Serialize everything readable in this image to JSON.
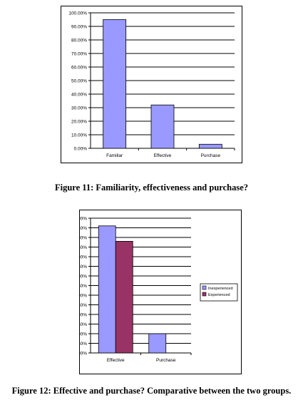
{
  "chart_data": [
    {
      "type": "bar",
      "categories": [
        "Familiar",
        "Effective",
        "Purchase"
      ],
      "series": [
        {
          "values": [
            95,
            32,
            3
          ],
          "color": "#9999ff"
        }
      ],
      "yticks": [
        "0.00%",
        "10.00%",
        "20.00%",
        "30.00%",
        "40.00%",
        "50.00%",
        "60.00%",
        "70.00%",
        "80.00%",
        "90.00%",
        "100.00%"
      ],
      "ylim": [
        0,
        100
      ],
      "grid": true,
      "legend": "none"
    },
    {
      "type": "bar",
      "categories": [
        "Effective",
        "Purchase"
      ],
      "series": [
        {
          "name": "Inexperienced",
          "values": [
            33,
            5
          ],
          "color": "#9999ff"
        },
        {
          "name": "Experienced",
          "values": [
            29,
            0
          ],
          "color": "#993366"
        }
      ],
      "yticks": [
        "0.00%",
        "2.50%",
        "5.00%",
        "7.50%",
        "10.00%",
        "12.50%",
        "15.00%",
        "17.50%",
        "20.00%",
        "22.50%",
        "25.00%",
        "27.50%",
        "30.00%",
        "32.50%",
        "35.00%"
      ],
      "ylim": [
        0,
        35
      ],
      "grid": true,
      "legend": "right"
    }
  ],
  "captions": {
    "figure11": "Figure 11: Familiarity, effectiveness and purchase?",
    "figure12": "Figure 12: Effective and purchase? Comparative between the two groups."
  }
}
